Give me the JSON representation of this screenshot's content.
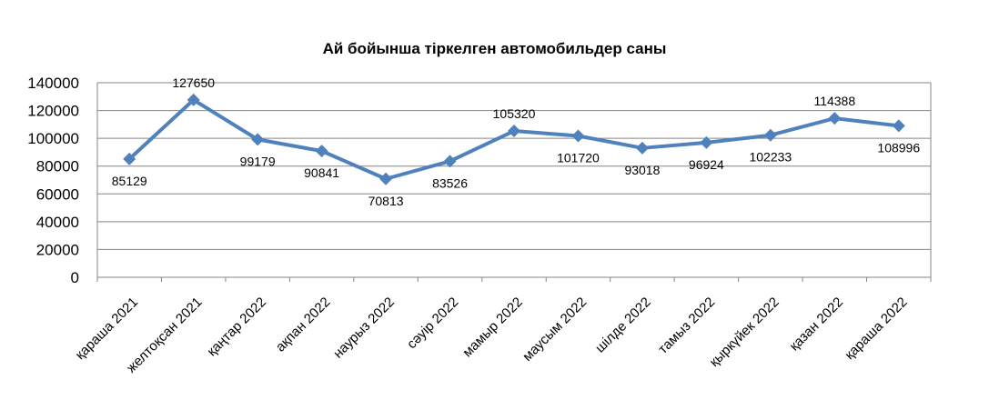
{
  "chart_data": {
    "type": "line",
    "title": "Ай бойынша тіркелген автомобильдер саны",
    "xlabel": "",
    "ylabel": "",
    "ylim": [
      0,
      140000
    ],
    "yticks": [
      0,
      20000,
      40000,
      60000,
      80000,
      100000,
      120000,
      140000
    ],
    "grid": true,
    "legend": "none",
    "categories": [
      "қараша 2021",
      "желтоқсан 2021",
      "қаңтар 2022",
      "ақпан 2022",
      "наурыз 2022",
      "сәуір 2022",
      "мамыр 2022",
      "маусым 2022",
      "шілде 2022",
      "тамыз 2022",
      "қыркүйек 2022",
      "қазан 2022",
      "қараша 2022"
    ],
    "series": [
      {
        "values": [
          85129,
          127650,
          99179,
          90841,
          70813,
          83526,
          105320,
          101720,
          93018,
          96924,
          102233,
          114388,
          108996
        ],
        "color": "#4F81BD",
        "marker": "diamond"
      }
    ]
  }
}
